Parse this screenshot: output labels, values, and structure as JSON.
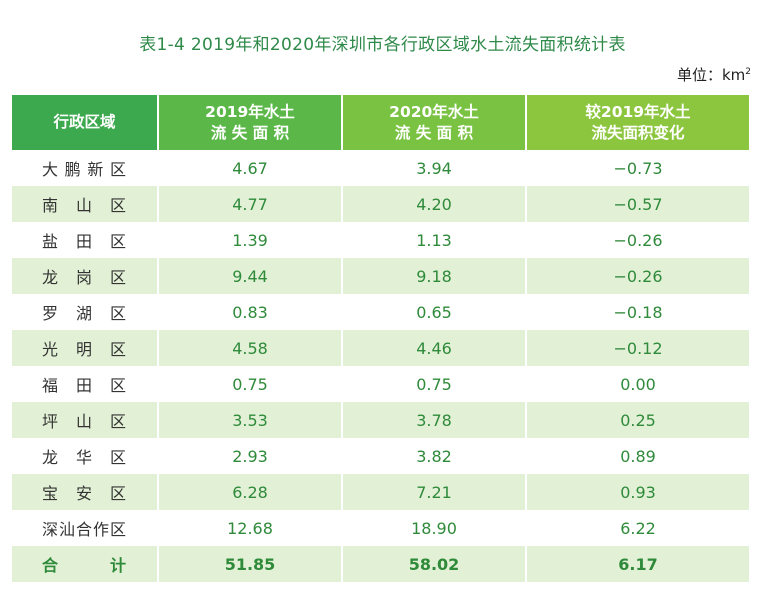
{
  "title": "表1-4  2019年和2020年深圳市各行政区域水土流失面积统计表",
  "unit_label": "单位：km",
  "unit_sup": "2",
  "headers": [
    {
      "line1": "行政区域",
      "line2": ""
    },
    {
      "line1": "2019年水土",
      "line2": "流 失 面 积"
    },
    {
      "line1": "2020年水土",
      "line2": "流 失 面 积"
    },
    {
      "line1": "较2019年水土",
      "line2": "流失面积变化"
    }
  ],
  "rows": [
    {
      "name": "大鹏新区",
      "v2019": "4.67",
      "v2020": "3.94",
      "change": "−0.73"
    },
    {
      "name": "南山区",
      "v2019": "4.77",
      "v2020": "4.20",
      "change": "−0.57"
    },
    {
      "name": "盐田区",
      "v2019": "1.39",
      "v2020": "1.13",
      "change": "−0.26"
    },
    {
      "name": "龙岗区",
      "v2019": "9.44",
      "v2020": "9.18",
      "change": "−0.26"
    },
    {
      "name": "罗湖区",
      "v2019": "0.83",
      "v2020": "0.65",
      "change": "−0.18"
    },
    {
      "name": "光明区",
      "v2019": "4.58",
      "v2020": "4.46",
      "change": "−0.12"
    },
    {
      "name": "福田区",
      "v2019": "0.75",
      "v2020": "0.75",
      "change": "0.00"
    },
    {
      "name": "坪山区",
      "v2019": "3.53",
      "v2020": "3.78",
      "change": "0.25"
    },
    {
      "name": "龙华区",
      "v2019": "2.93",
      "v2020": "3.82",
      "change": "0.89"
    },
    {
      "name": "宝安区",
      "v2019": "6.28",
      "v2020": "7.21",
      "change": "0.93"
    },
    {
      "name": "深汕合作区",
      "v2019": "12.68",
      "v2020": "18.90",
      "change": "6.22"
    }
  ],
  "total": {
    "name": "合计",
    "v2019": "51.85",
    "v2020": "58.02",
    "change": "6.17"
  }
}
